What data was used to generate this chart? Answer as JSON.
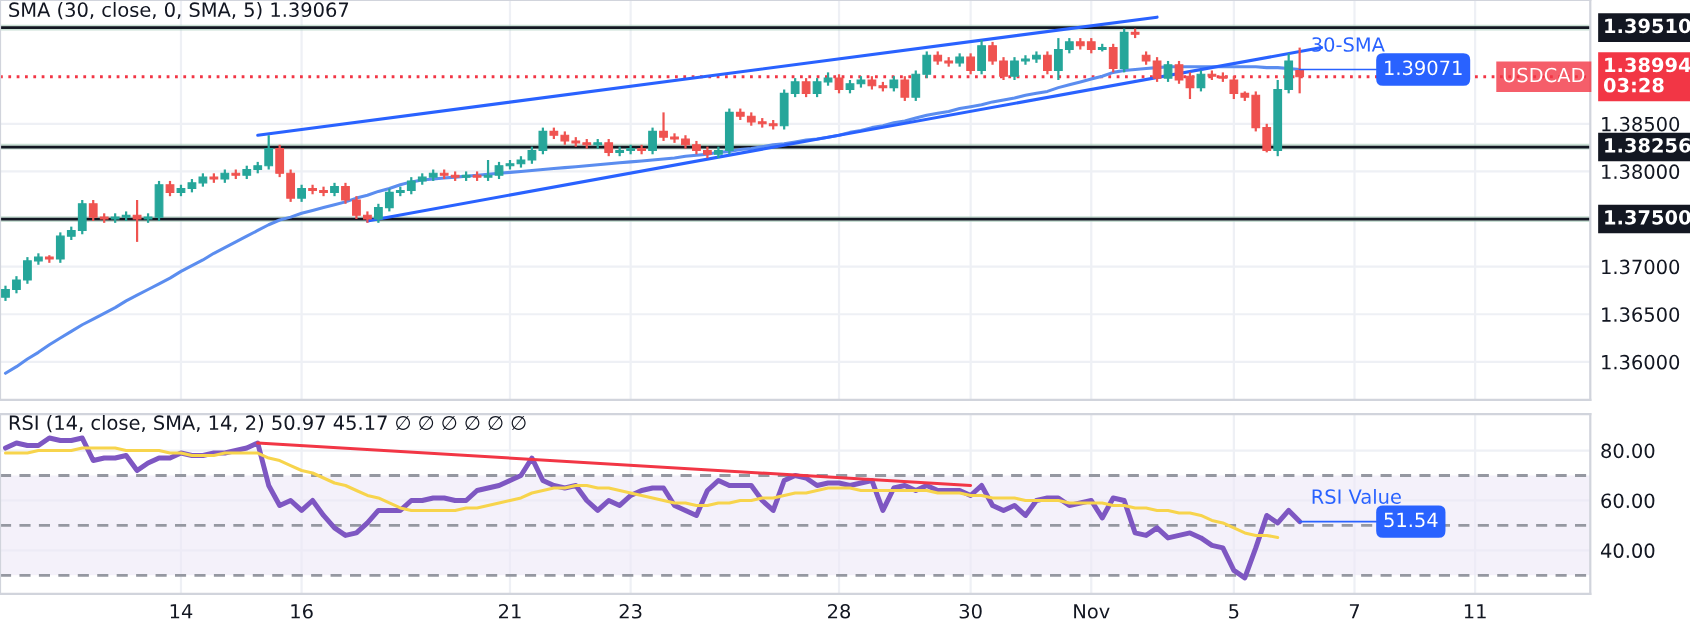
{
  "chart_data": [
    {
      "type": "candlestick",
      "categories": [
        null,
        null,
        null,
        null,
        null,
        null,
        null,
        null,
        null,
        null,
        null,
        null,
        null,
        null,
        null,
        null,
        null,
        null,
        null,
        null,
        null,
        null,
        null,
        null,
        null,
        null,
        null,
        null,
        null,
        null,
        null,
        null,
        null,
        null,
        null,
        null,
        null,
        null,
        null,
        null,
        null,
        null,
        null,
        null,
        null,
        null,
        null,
        null,
        null,
        null,
        null,
        null,
        null,
        null,
        null,
        null,
        null,
        null,
        null,
        null,
        null,
        null,
        null,
        null,
        null,
        null,
        null,
        null,
        null,
        null,
        null,
        null,
        null,
        null,
        null,
        null,
        null,
        null,
        null,
        null,
        null,
        null,
        null,
        null,
        null,
        null,
        null,
        null,
        null,
        null,
        null,
        null,
        null,
        null,
        null,
        null,
        null,
        null,
        null,
        null,
        null,
        null,
        null,
        null,
        null,
        null,
        null,
        null,
        null,
        null,
        null,
        null,
        null,
        null,
        null,
        null,
        null,
        null,
        null,
        null,
        null,
        null,
        null,
        null,
        null,
        null,
        null,
        null,
        null,
        null,
        null,
        null,
        null,
        null,
        null,
        null,
        null,
        null,
        null,
        null,
        null,
        null,
        null,
        null,
        null
      ],
      "ohlc": [
        [
          1.3668,
          1.368,
          1.3664,
          1.3676
        ],
        [
          1.3676,
          1.369,
          1.3672,
          1.3686
        ],
        [
          1.3686,
          1.371,
          1.3682,
          1.3706
        ],
        [
          1.3706,
          1.3714,
          1.3702,
          1.371
        ],
        [
          1.371,
          1.3712,
          1.3704,
          1.3708
        ],
        [
          1.3708,
          1.3736,
          1.3704,
          1.3732
        ],
        [
          1.3732,
          1.3742,
          1.3728,
          1.3738
        ],
        [
          1.3738,
          1.377,
          1.3734,
          1.3766
        ],
        [
          1.3766,
          1.377,
          1.3748,
          1.3752
        ],
        [
          1.3752,
          1.3756,
          1.3746,
          1.375
        ],
        [
          1.375,
          1.3756,
          1.3746,
          1.3752
        ],
        [
          1.3752,
          1.3758,
          1.3748,
          1.3754
        ],
        [
          1.3754,
          1.377,
          1.3726,
          1.375
        ],
        [
          1.375,
          1.3756,
          1.3746,
          1.3752
        ],
        [
          1.3752,
          1.379,
          1.3748,
          1.3786
        ],
        [
          1.3786,
          1.379,
          1.3774,
          1.3778
        ],
        [
          1.3778,
          1.3786,
          1.3774,
          1.3782
        ],
        [
          1.3782,
          1.3792,
          1.3778,
          1.3788
        ],
        [
          1.3788,
          1.3798,
          1.3784,
          1.3794
        ],
        [
          1.3794,
          1.3798,
          1.3788,
          1.3792
        ],
        [
          1.3792,
          1.3802,
          1.3788,
          1.3798
        ],
        [
          1.3798,
          1.3802,
          1.3792,
          1.3796
        ],
        [
          1.3796,
          1.3806,
          1.3792,
          1.3802
        ],
        [
          1.3802,
          1.381,
          1.3798,
          1.3806
        ],
        [
          1.3806,
          1.3838,
          1.3802,
          1.3824
        ],
        [
          1.3824,
          1.3828,
          1.3794,
          1.3798
        ],
        [
          1.3798,
          1.3802,
          1.3768,
          1.3772
        ],
        [
          1.3772,
          1.3786,
          1.3768,
          1.3782
        ],
        [
          1.3782,
          1.3786,
          1.3776,
          1.378
        ],
        [
          1.378,
          1.3784,
          1.3774,
          1.3778
        ],
        [
          1.3778,
          1.3788,
          1.3774,
          1.3784
        ],
        [
          1.3784,
          1.3788,
          1.3766,
          1.377
        ],
        [
          1.377,
          1.3774,
          1.375,
          1.3754
        ],
        [
          1.3754,
          1.3758,
          1.3746,
          1.375
        ],
        [
          1.375,
          1.3766,
          1.3746,
          1.3762
        ],
        [
          1.3762,
          1.3782,
          1.3758,
          1.3778
        ],
        [
          1.3778,
          1.3784,
          1.3774,
          1.378
        ],
        [
          1.378,
          1.3794,
          1.3776,
          1.379
        ],
        [
          1.379,
          1.3798,
          1.3786,
          1.3794
        ],
        [
          1.3794,
          1.3802,
          1.379,
          1.3798
        ],
        [
          1.3798,
          1.3802,
          1.3792,
          1.3796
        ],
        [
          1.3796,
          1.38,
          1.379,
          1.3794
        ],
        [
          1.3794,
          1.38,
          1.379,
          1.3796
        ],
        [
          1.3796,
          1.38,
          1.379,
          1.3794
        ],
        [
          1.3794,
          1.3812,
          1.379,
          1.3796
        ],
        [
          1.3796,
          1.381,
          1.3792,
          1.3806
        ],
        [
          1.3806,
          1.3812,
          1.3802,
          1.3808
        ],
        [
          1.3808,
          1.3816,
          1.3804,
          1.3812
        ],
        [
          1.3812,
          1.3826,
          1.3808,
          1.3822
        ],
        [
          1.3822,
          1.3846,
          1.3818,
          1.3842
        ],
        [
          1.3842,
          1.3846,
          1.3834,
          1.3838
        ],
        [
          1.3838,
          1.3842,
          1.3828,
          1.3832
        ],
        [
          1.3832,
          1.3836,
          1.3826,
          1.383
        ],
        [
          1.383,
          1.3834,
          1.3824,
          1.3828
        ],
        [
          1.3828,
          1.3834,
          1.3824,
          1.383
        ],
        [
          1.383,
          1.3834,
          1.3816,
          1.382
        ],
        [
          1.382,
          1.3826,
          1.3816,
          1.3822
        ],
        [
          1.3822,
          1.3828,
          1.3818,
          1.3824
        ],
        [
          1.3824,
          1.3828,
          1.3818,
          1.3822
        ],
        [
          1.3822,
          1.3846,
          1.3818,
          1.3842
        ],
        [
          1.3842,
          1.3862,
          1.3832,
          1.3836
        ],
        [
          1.3836,
          1.384,
          1.383,
          1.3834
        ],
        [
          1.3834,
          1.3838,
          1.3824,
          1.3828
        ],
        [
          1.3828,
          1.3832,
          1.3818,
          1.3822
        ],
        [
          1.3822,
          1.3826,
          1.3814,
          1.3818
        ],
        [
          1.3818,
          1.3826,
          1.3814,
          1.3822
        ],
        [
          1.3822,
          1.3866,
          1.3818,
          1.3862
        ],
        [
          1.3862,
          1.3866,
          1.3854,
          1.3858
        ],
        [
          1.3858,
          1.3862,
          1.3848,
          1.3852
        ],
        [
          1.3852,
          1.3856,
          1.3846,
          1.385
        ],
        [
          1.385,
          1.3854,
          1.3844,
          1.3848
        ],
        [
          1.3848,
          1.3886,
          1.3844,
          1.3882
        ],
        [
          1.3882,
          1.3898,
          1.3878,
          1.3894
        ],
        [
          1.3894,
          1.3898,
          1.3878,
          1.3882
        ],
        [
          1.3882,
          1.3898,
          1.3878,
          1.3894
        ],
        [
          1.3894,
          1.3904,
          1.389,
          1.3898
        ],
        [
          1.3898,
          1.3902,
          1.3882,
          1.3886
        ],
        [
          1.3886,
          1.3896,
          1.3882,
          1.3892
        ],
        [
          1.3892,
          1.39,
          1.3888,
          1.3896
        ],
        [
          1.3896,
          1.39,
          1.3886,
          1.389
        ],
        [
          1.389,
          1.3894,
          1.3884,
          1.3888
        ],
        [
          1.3888,
          1.39,
          1.3884,
          1.3896
        ],
        [
          1.3896,
          1.39,
          1.3874,
          1.3878
        ],
        [
          1.3878,
          1.3906,
          1.3874,
          1.3902
        ],
        [
          1.3902,
          1.3926,
          1.3898,
          1.3922
        ],
        [
          1.3922,
          1.3926,
          1.3912,
          1.3916
        ],
        [
          1.3916,
          1.392,
          1.391,
          1.3914
        ],
        [
          1.3914,
          1.3924,
          1.391,
          1.392
        ],
        [
          1.392,
          1.3924,
          1.3902,
          1.3906
        ],
        [
          1.3906,
          1.3938,
          1.3902,
          1.3932
        ],
        [
          1.3932,
          1.3936,
          1.3912,
          1.3916
        ],
        [
          1.3916,
          1.392,
          1.3896,
          1.39
        ],
        [
          1.39,
          1.392,
          1.3896,
          1.3916
        ],
        [
          1.3916,
          1.3922,
          1.3912,
          1.3918
        ],
        [
          1.3918,
          1.3926,
          1.3914,
          1.3922
        ],
        [
          1.3922,
          1.3926,
          1.3902,
          1.3906
        ],
        [
          1.3906,
          1.394,
          1.3896,
          1.3928
        ],
        [
          1.3928,
          1.394,
          1.3924,
          1.3936
        ],
        [
          1.3936,
          1.394,
          1.3928,
          1.3932
        ],
        [
          1.3936,
          1.394,
          1.3924,
          1.3928
        ],
        [
          1.3928,
          1.3934,
          1.3926,
          1.393
        ],
        [
          1.393,
          1.3934,
          1.3904,
          1.3908
        ],
        [
          1.3908,
          1.395,
          1.3904,
          1.3946
        ],
        [
          1.3946,
          1.395,
          1.394,
          1.3944
        ],
        [
          1.3922,
          1.3926,
          1.3912,
          1.3916
        ],
        [
          1.3916,
          1.392,
          1.3894,
          1.3898
        ],
        [
          1.3898,
          1.3916,
          1.3894,
          1.3912
        ],
        [
          1.3912,
          1.3916,
          1.3892,
          1.3896
        ],
        [
          1.39,
          1.3904,
          1.3876,
          1.3888
        ],
        [
          1.3888,
          1.3906,
          1.3884,
          1.3902
        ],
        [
          1.3902,
          1.3906,
          1.3896,
          1.39
        ],
        [
          1.39,
          1.3904,
          1.3894,
          1.3898
        ],
        [
          1.3896,
          1.39,
          1.3876,
          1.3882
        ],
        [
          1.3882,
          1.3884,
          1.3874,
          1.3878
        ],
        [
          1.388,
          1.3884,
          1.3842,
          1.3846
        ],
        [
          1.3846,
          1.385,
          1.382,
          1.3822
        ],
        [
          1.3822,
          1.3896,
          1.3816,
          1.3886
        ],
        [
          1.3886,
          1.3924,
          1.3882,
          1.3916
        ],
        [
          1.3906,
          1.393,
          1.3882,
          1.38994
        ],
        null,
        null,
        null,
        null,
        null,
        null,
        null,
        null,
        null,
        null,
        null,
        null,
        null,
        null,
        null,
        null,
        null,
        null,
        null,
        null,
        null,
        null,
        null,
        null,
        null,
        null
      ],
      "series": [
        {
          "type": "line",
          "color": "#5b8def",
          "values": [
            1.3588,
            1.3595,
            1.3603,
            1.361,
            1.3618,
            1.3625,
            1.3632,
            1.3639,
            1.3645,
            1.3651,
            1.3657,
            1.3664,
            1.367,
            1.3676,
            1.3682,
            1.3688,
            1.3695,
            1.3701,
            1.3707,
            1.3714,
            1.372,
            1.3726,
            1.3732,
            1.3738,
            1.3744,
            1.3749,
            1.3752,
            1.3756,
            1.3759,
            1.3762,
            1.3765,
            1.3768,
            1.3772,
            1.3775,
            1.3779,
            1.3782,
            1.3786,
            1.3789,
            1.3791,
            1.3792,
            1.3793,
            1.3794,
            1.3795,
            1.3796,
            1.3797,
            1.3798,
            1.3799,
            1.38,
            1.3801,
            1.3802,
            1.3803,
            1.3804,
            1.3805,
            1.3806,
            1.3807,
            1.3808,
            1.3809,
            1.381,
            1.3811,
            1.3812,
            1.3813,
            1.3814,
            1.3816,
            1.3817,
            1.3818,
            1.382,
            1.3821,
            1.3823,
            1.3824,
            1.3826,
            1.3828,
            1.3829,
            1.3831,
            1.3833,
            1.3834,
            1.3836,
            1.3838,
            1.3841,
            1.3843,
            1.3846,
            1.3848,
            1.3851,
            1.3853,
            1.3856,
            1.3859,
            1.3861,
            1.3863,
            1.3866,
            1.3868,
            1.387,
            1.3873,
            1.3875,
            1.3877,
            1.388,
            1.3882,
            1.3884,
            1.3888,
            1.3891,
            1.3894,
            1.3897,
            1.39,
            1.3904,
            1.3906,
            1.3907,
            1.3908,
            1.3909,
            1.391,
            1.391,
            1.391,
            1.391,
            1.391,
            1.391,
            1.391,
            1.391,
            1.391,
            1.3909,
            1.3909,
            1.3908,
            1.3907,
            null,
            null,
            null,
            null,
            null,
            null,
            null,
            null,
            null,
            null,
            null,
            null,
            null,
            null,
            null,
            null,
            null,
            null,
            null,
            null,
            null,
            null,
            null,
            null,
            null,
            null
          ]
        },
        {
          "type": "line",
          "color": "#2962ff",
          "values": [
            null,
            null,
            null,
            null,
            null,
            null,
            null,
            null,
            null,
            null,
            null,
            null,
            null,
            null,
            null,
            null,
            null,
            null,
            null,
            null,
            null,
            null,
            null,
            1.3838,
            null,
            null,
            null,
            null,
            null,
            null,
            null,
            null,
            null,
            null,
            null,
            null,
            null,
            null,
            null,
            null,
            null,
            null,
            null,
            null,
            null,
            null,
            null,
            null,
            null,
            null,
            null,
            null,
            null,
            null,
            null,
            null,
            null,
            null,
            null,
            null,
            null,
            null,
            null,
            null,
            null,
            null,
            null,
            null,
            null,
            null,
            null,
            null,
            null,
            null,
            null,
            null,
            null,
            null,
            null,
            null,
            null,
            null,
            null,
            null,
            null,
            null,
            null,
            null,
            null,
            null,
            null,
            null,
            null,
            null,
            null,
            null,
            null,
            null,
            null,
            null,
            null,
            null,
            null,
            null,
            null,
            1.3962,
            null,
            null,
            null,
            null,
            null,
            null,
            null,
            null,
            null,
            null,
            null,
            null,
            null,
            null,
            null,
            null,
            null,
            null,
            null,
            null,
            null,
            null,
            null,
            null,
            null,
            null,
            null,
            null,
            null,
            null,
            null,
            null,
            null,
            null,
            null,
            null,
            null,
            null,
            null
          ]
        },
        {
          "type": "line",
          "color": "#2962ff",
          "values": [
            null,
            null,
            null,
            null,
            null,
            null,
            null,
            null,
            null,
            null,
            null,
            null,
            null,
            null,
            null,
            null,
            null,
            null,
            null,
            null,
            null,
            null,
            null,
            null,
            null,
            null,
            null,
            null,
            null,
            null,
            null,
            null,
            null,
            1.3748,
            null,
            null,
            null,
            null,
            null,
            null,
            null,
            null,
            null,
            null,
            null,
            null,
            null,
            null,
            null,
            null,
            null,
            null,
            null,
            null,
            null,
            null,
            null,
            null,
            null,
            null,
            null,
            null,
            null,
            null,
            null,
            null,
            null,
            null,
            null,
            null,
            null,
            null,
            null,
            null,
            null,
            null,
            null,
            null,
            null,
            null,
            null,
            null,
            null,
            null,
            null,
            null,
            null,
            null,
            null,
            null,
            null,
            null,
            null,
            null,
            null,
            null,
            null,
            null,
            null,
            null,
            null,
            null,
            null,
            null,
            null,
            null,
            null,
            null,
            null,
            null,
            null,
            null,
            null,
            null,
            null,
            null,
            null,
            null,
            null,
            null,
            1.393,
            null,
            null,
            null,
            null,
            null,
            null,
            null,
            null,
            null,
            null,
            null,
            null,
            null,
            null,
            null,
            null,
            null,
            null,
            null,
            null,
            null,
            null,
            null,
            null
          ]
        }
      ],
      "ref_lines": [
        {
          "axis": "y",
          "value": 1.3951,
          "label": "1.39510",
          "color": "#131722",
          "line_style": "solid"
        },
        {
          "axis": "y",
          "value": 1.38256,
          "label": "1.38256",
          "color": "#131722",
          "line_style": "solid"
        },
        {
          "axis": "y",
          "value": 1.375,
          "label": "1.37500",
          "color": "#131722",
          "line_style": "solid"
        },
        {
          "axis": "y",
          "value": 1.38994,
          "label": "1.38994\n03:28",
          "color": "#f23645",
          "line_style": "dotted"
        }
      ],
      "bands": [
        {
          "axis": "y",
          "from": 1.3948,
          "to": 1.3954,
          "color": "#a5c9b8"
        },
        {
          "axis": "y",
          "from": 1.3823,
          "to": 1.3829,
          "color": "#a5c9b8"
        },
        {
          "axis": "y",
          "from": 1.3747,
          "to": 1.3753,
          "color": "#a5c9b8"
        }
      ],
      "annotations": [
        "SMA (30, close, 0, SMA, 5) 1.39067",
        {
          "text": "30-SMA",
          "y": 1.3907
        },
        {
          "text": "1.39071",
          "y": 1.3907
        },
        {
          "text": "USDCAD",
          "y": 1.38994
        }
      ],
      "ylim": [
        1.356,
        1.398
      ],
      "yticks": [
        {
          "value": 1.36,
          "label": "1.36000"
        },
        {
          "value": 1.365,
          "label": "1.36500"
        },
        {
          "value": 1.37,
          "label": "1.37000"
        },
        {
          "value": 1.38,
          "label": "1.38000"
        },
        {
          "value": 1.385,
          "label": "1.38500"
        }
      ],
      "grid": true
    },
    {
      "type": "line",
      "categories": [
        null,
        null,
        null,
        null,
        null,
        null,
        null,
        null,
        null,
        null,
        null,
        null,
        null,
        null,
        null,
        null,
        "14",
        null,
        null,
        null,
        null,
        null,
        null,
        null,
        null,
        null,
        null,
        "16",
        null,
        null,
        null,
        null,
        null,
        null,
        null,
        null,
        null,
        null,
        null,
        null,
        null,
        null,
        null,
        null,
        null,
        null,
        "21",
        null,
        null,
        null,
        null,
        null,
        null,
        null,
        null,
        null,
        null,
        "23",
        null,
        null,
        null,
        null,
        null,
        null,
        null,
        null,
        null,
        null,
        null,
        null,
        null,
        null,
        null,
        null,
        null,
        null,
        "28",
        null,
        null,
        null,
        null,
        null,
        null,
        null,
        null,
        null,
        null,
        null,
        "30",
        null,
        null,
        null,
        null,
        null,
        null,
        null,
        null,
        null,
        null,
        "Nov",
        null,
        null,
        null,
        null,
        null,
        null,
        null,
        null,
        null,
        null,
        null,
        null,
        "5",
        null,
        null,
        null,
        null,
        null,
        null,
        null,
        null,
        null,
        null,
        "7",
        null,
        null,
        null,
        null,
        null,
        null,
        null,
        null,
        null,
        null,
        "11",
        null,
        null,
        null,
        null,
        null,
        null,
        null,
        null,
        null,
        null
      ],
      "series": [
        {
          "type": "line",
          "color": "#7e57c2",
          "values": [
            81,
            83,
            82,
            82,
            85,
            84,
            84,
            85,
            76,
            77,
            77,
            78,
            72,
            75,
            77,
            77,
            79,
            78,
            78,
            79,
            79,
            80,
            81,
            83,
            66,
            58,
            60,
            56,
            60,
            54,
            49,
            46,
            47,
            51,
            56,
            56,
            56,
            60,
            60,
            61,
            61,
            60,
            60,
            64,
            65,
            66,
            68,
            70,
            77,
            68,
            66,
            65,
            66,
            60,
            56,
            60,
            58,
            62,
            64,
            65,
            65,
            58,
            56,
            54,
            64,
            68,
            66,
            66,
            66,
            60,
            56,
            68,
            70,
            69,
            66,
            67,
            67,
            66,
            67,
            68,
            56,
            65,
            66,
            64,
            66,
            64,
            64,
            64,
            62,
            66,
            58,
            56,
            58,
            54,
            60,
            61,
            61,
            58,
            59,
            60,
            53,
            61,
            60,
            47,
            46,
            49,
            45,
            46,
            47,
            45,
            42,
            41,
            32,
            29,
            41,
            54,
            51,
            56,
            51.54,
            null,
            null,
            null,
            null,
            null,
            null,
            null,
            null,
            null,
            null,
            null,
            null,
            null,
            null,
            null,
            null,
            null,
            null,
            null,
            null,
            null,
            null,
            null,
            null,
            null,
            null
          ]
        },
        {
          "type": "line",
          "color": "#f7d44c",
          "values": [
            79,
            79,
            79,
            80,
            80,
            80,
            80,
            81,
            81,
            81,
            81,
            80,
            80,
            80,
            80,
            79,
            79,
            78,
            78,
            78,
            79,
            79,
            79,
            79,
            77,
            76,
            74,
            72,
            71,
            69,
            67,
            66,
            64,
            62,
            61,
            59,
            57,
            56,
            56,
            56,
            56,
            56,
            57,
            57,
            58,
            59,
            60,
            61,
            63,
            64,
            65,
            65,
            66,
            66,
            65,
            65,
            64,
            63,
            62,
            61,
            60,
            59,
            59,
            58,
            58,
            59,
            59,
            60,
            60,
            61,
            61,
            62,
            63,
            63,
            64,
            65,
            65,
            65,
            64,
            64,
            64,
            64,
            64,
            64,
            64,
            63,
            63,
            63,
            62,
            62,
            61,
            61,
            61,
            60,
            60,
            60,
            60,
            59,
            59,
            59,
            59,
            58,
            58,
            57,
            57,
            56,
            56,
            55,
            55,
            54,
            52,
            51,
            49,
            47,
            46,
            46,
            45.17,
            null,
            null,
            null,
            null,
            null,
            null,
            null,
            null,
            null,
            null,
            null,
            null,
            null,
            null,
            null,
            null,
            null,
            null,
            null,
            null,
            null,
            null,
            null,
            null,
            null,
            null,
            null,
            null
          ]
        },
        {
          "type": "line",
          "color": "#f23645",
          "values": [
            null,
            null,
            null,
            null,
            null,
            null,
            null,
            null,
            null,
            null,
            null,
            null,
            null,
            null,
            null,
            null,
            null,
            null,
            null,
            null,
            null,
            null,
            null,
            83,
            null,
            null,
            null,
            null,
            null,
            null,
            null,
            null,
            null,
            null,
            null,
            null,
            null,
            null,
            null,
            null,
            null,
            null,
            null,
            null,
            null,
            null,
            null,
            null,
            null,
            null,
            null,
            null,
            null,
            null,
            null,
            null,
            null,
            null,
            null,
            null,
            null,
            null,
            null,
            null,
            null,
            null,
            null,
            null,
            null,
            null,
            null,
            null,
            null,
            null,
            null,
            null,
            null,
            null,
            null,
            null,
            null,
            null,
            null,
            null,
            null,
            null,
            null,
            null,
            66,
            null,
            null,
            null,
            null,
            null,
            null,
            null,
            null,
            null,
            null,
            null,
            null,
            null,
            null,
            null,
            null,
            null,
            null,
            null,
            null,
            null,
            null,
            null,
            null,
            null,
            null,
            null,
            null,
            null,
            null,
            null,
            null,
            null,
            null,
            null,
            null,
            null,
            null,
            null,
            null,
            null,
            null,
            null,
            null,
            null,
            null,
            null,
            null,
            null,
            null,
            null,
            null,
            null,
            null,
            null,
            null
          ]
        }
      ],
      "ref_lines": [
        {
          "axis": "y",
          "value": 70,
          "color": "#9598a1",
          "line_style": "dashed"
        },
        {
          "axis": "y",
          "value": 50,
          "color": "#9598a1",
          "line_style": "dashed"
        },
        {
          "axis": "y",
          "value": 30,
          "color": "#9598a1",
          "line_style": "dashed"
        }
      ],
      "bands": [
        {
          "axis": "y",
          "from": 30,
          "to": 70,
          "color": "#ede7f6"
        }
      ],
      "annotations": [
        "RSI (14, close, SMA, 14, 2) 50.97 45.17 ∅ ∅ ∅ ∅ ∅ ∅",
        {
          "text": "RSI Value",
          "y": 51.54
        },
        {
          "text": "51.54",
          "y": 51.54
        }
      ],
      "ylim": [
        22.6,
        94.6
      ],
      "yticks": [
        {
          "value": 40,
          "label": "40.00"
        },
        {
          "value": 60,
          "label": "60.00"
        },
        {
          "value": 80,
          "label": "80.00"
        }
      ],
      "grid": true
    }
  ]
}
